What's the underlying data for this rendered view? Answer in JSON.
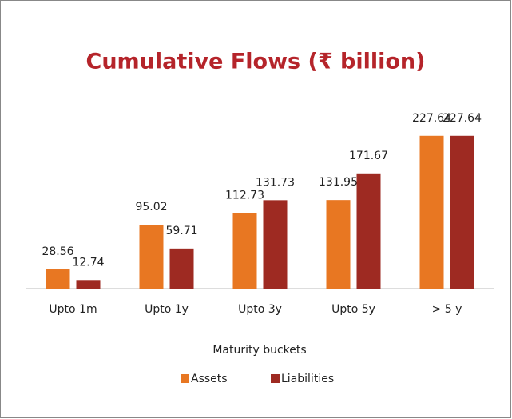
{
  "chart_data": {
    "type": "bar",
    "title": "Cumulative Flows (₹ billion)",
    "x_label": "Maturity buckets",
    "categories": [
      "Upto 1m",
      "Upto 1y",
      "Upto 3y",
      "Upto 5y",
      "> 5 y"
    ],
    "series": [
      {
        "name": "Assets",
        "color": "#e87722",
        "values": [
          28.56,
          95.02,
          112.73,
          131.95,
          227.64
        ]
      },
      {
        "name": "Liabilities",
        "color": "#9e2a22",
        "values": [
          12.74,
          59.71,
          131.73,
          171.67,
          227.64
        ]
      }
    ],
    "ylim": [
      0,
      250
    ],
    "legend": "bottom"
  }
}
